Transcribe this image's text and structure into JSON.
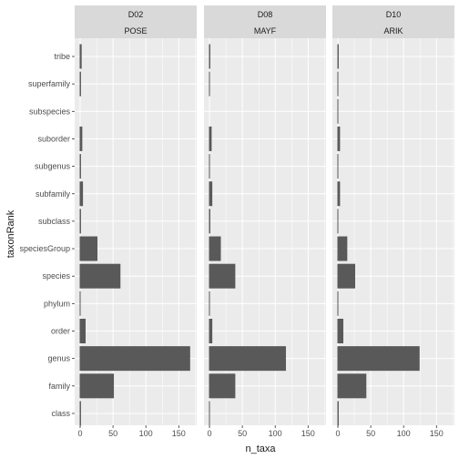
{
  "chart_data": {
    "type": "bar",
    "orientation": "horizontal",
    "xlabel": "n_taxa",
    "ylabel": "taxonRank",
    "xlim": [
      0,
      180
    ],
    "x_ticks": [
      0,
      50,
      100,
      150
    ],
    "x_tick_labels": [
      "0",
      "50",
      "100",
      "150"
    ],
    "grid": true,
    "categories": [
      "class",
      "family",
      "genus",
      "order",
      "phylum",
      "species",
      "speciesGroup",
      "subclass",
      "subfamily",
      "subgenus",
      "suborder",
      "subspecies",
      "superfamily",
      "tribe"
    ],
    "panels": [
      {
        "strip_top": "D02",
        "strip_bottom": "POSE",
        "values": [
          2,
          52,
          168,
          9,
          1,
          62,
          27,
          2,
          5,
          2,
          4,
          0,
          2,
          3
        ]
      },
      {
        "strip_top": "D08",
        "strip_bottom": "MAYF",
        "values": [
          1,
          40,
          117,
          5,
          1,
          40,
          18,
          2,
          5,
          1,
          4,
          0,
          1,
          2
        ]
      },
      {
        "strip_top": "D10",
        "strip_bottom": "ARIK",
        "values": [
          2,
          44,
          125,
          9,
          1,
          27,
          15,
          1,
          4,
          1,
          4,
          1,
          1,
          2
        ]
      }
    ],
    "colors": {
      "bar": "#595959",
      "panel_bg": "#ebebeb",
      "grid": "#ffffff",
      "strip_bg": "#d9d9d9",
      "text": "#1a1a1a",
      "tick_text": "#4d4d4d"
    }
  }
}
